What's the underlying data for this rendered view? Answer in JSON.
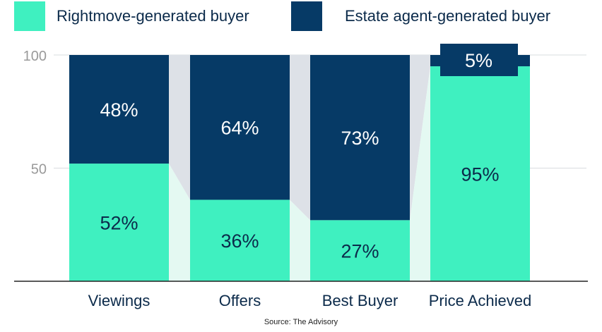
{
  "legend": {
    "items": [
      {
        "label": "Rightmove-generated buyer",
        "color": "#3ff0c0"
      },
      {
        "label": "Estate agent-generated buyer",
        "color": "#063a66"
      }
    ]
  },
  "chart_data": {
    "type": "bar",
    "stacked": true,
    "normalized": true,
    "categories": [
      "Viewings",
      "Offers",
      "Best Buyer",
      "Price Achieved"
    ],
    "series": [
      {
        "name": "Rightmove-generated buyer",
        "values": [
          52,
          36,
          27,
          95
        ],
        "color": "#3ff0c0",
        "labels": [
          "52%",
          "36%",
          "27%",
          "95%"
        ]
      },
      {
        "name": "Estate agent-generated buyer",
        "values": [
          48,
          64,
          73,
          5
        ],
        "color": "#063a66",
        "labels": [
          "48%",
          "64%",
          "73%",
          "5%"
        ]
      }
    ],
    "yticks": [
      "100",
      "50"
    ],
    "ytick_values": [
      100,
      50
    ],
    "ylim": [
      0,
      100
    ],
    "grid": true,
    "legend_position": "top-left",
    "connectors": true
  },
  "source": "Source: The Advisory"
}
